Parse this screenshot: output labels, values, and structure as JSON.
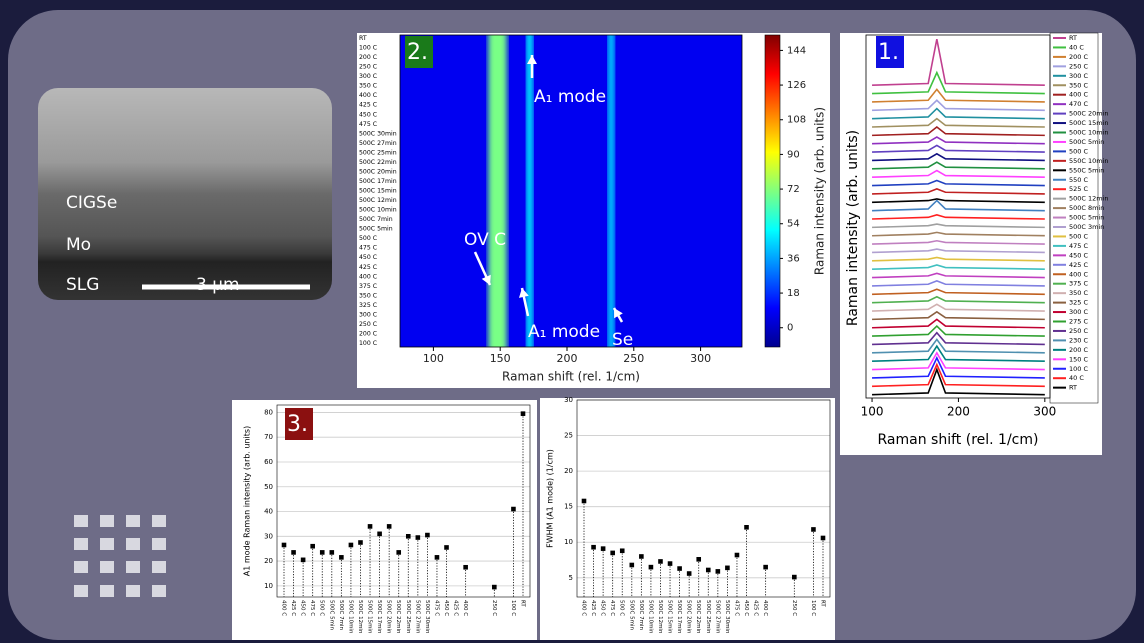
{
  "image": {
    "labels": [
      "CIGSe",
      "Mo",
      "SLG"
    ],
    "scale_bar": "3 μm"
  },
  "chart_data": [
    {
      "type": "heatmap",
      "panel_label": "2.",
      "xlabel": "Raman shift (rel. 1/cm)",
      "colorbar_label": "Raman intensity (arb. units)",
      "categories": [
        "RT",
        "100 C",
        "200 C",
        "250 C",
        "300 C",
        "350 C",
        "400 C",
        "425 C",
        "450 C",
        "475 C",
        "500C 30min",
        "500C 27min",
        "500C 25min",
        "500C 22min",
        "500C 20min",
        "500C 17min",
        "500C 15min",
        "500C 12min",
        "500C 10min",
        "500C 7min",
        "500C 5min",
        "500 C",
        "475 C",
        "450 C",
        "425 C",
        "400 C",
        "375 C",
        "350 C",
        "325 C",
        "300 C",
        "250 C",
        "200 C",
        "100 C"
      ],
      "xlim": [
        75,
        331
      ],
      "xticks": [
        100,
        150,
        200,
        250,
        300
      ],
      "clim": [
        -10,
        152
      ],
      "cticks": [
        0,
        18,
        36,
        54,
        72,
        90,
        108,
        126,
        144
      ],
      "background": 8,
      "peaks": [
        {
          "x": 148,
          "width": 14,
          "value": 70
        },
        {
          "x": 172,
          "width": 5,
          "value": 50
        },
        {
          "x": 233,
          "width": 5,
          "value": 45
        }
      ],
      "annotations": [
        "OV C",
        "A₁ mode",
        "A₁ mode",
        "Se"
      ]
    },
    {
      "type": "spectra",
      "panel_label": "1.",
      "xlabel": "Raman shift (rel. 1/cm)",
      "ylabel": "Raman intensity (arb. units)",
      "xlim": [
        93,
        306
      ],
      "xticks": [
        100,
        200,
        300
      ],
      "ylim": [
        -0.4,
        43
      ],
      "x": [
        100,
        165,
        175,
        185,
        300
      ],
      "series": [
        {
          "name": "RT",
          "color": "#c0408f",
          "values": [
            37,
            37.2,
            42.5,
            37.2,
            37
          ]
        },
        {
          "name": "40 C",
          "color": "#40c040",
          "values": [
            36,
            36.2,
            38.5,
            36.2,
            36
          ]
        },
        {
          "name": "200 C",
          "color": "#d08030",
          "values": [
            35,
            35.2,
            36.5,
            35.2,
            35
          ]
        },
        {
          "name": "250 C",
          "color": "#a0a0e0",
          "values": [
            34,
            34.2,
            35.2,
            34.2,
            34
          ]
        },
        {
          "name": "300 C",
          "color": "#2090a0",
          "values": [
            33,
            33.2,
            34.2,
            33.2,
            33
          ]
        },
        {
          "name": "350 C",
          "color": "#a09060",
          "values": [
            32,
            32.2,
            33,
            32.2,
            32
          ]
        },
        {
          "name": "400 C",
          "color": "#a02020",
          "values": [
            31,
            31.2,
            32,
            31.2,
            31
          ]
        },
        {
          "name": "470 C",
          "color": "#9030c0",
          "values": [
            30,
            30.2,
            30.8,
            30.2,
            30
          ]
        },
        {
          "name": "500C 20min",
          "color": "#6040c0",
          "values": [
            29,
            29.2,
            29.8,
            29.2,
            29
          ]
        },
        {
          "name": "500C 15min",
          "color": "#101080",
          "values": [
            28,
            28.2,
            28.8,
            28.2,
            28
          ]
        },
        {
          "name": "500C 10min",
          "color": "#209040",
          "values": [
            27,
            27.2,
            27.8,
            27.2,
            27
          ]
        },
        {
          "name": "500C 5min",
          "color": "#ff40ff",
          "values": [
            26,
            26.2,
            26.8,
            26.2,
            26
          ]
        },
        {
          "name": "500 C",
          "color": "#2040c0",
          "values": [
            25,
            25.2,
            25.6,
            25.2,
            25
          ]
        },
        {
          "name": "550C 10min",
          "color": "#c02020",
          "values": [
            24,
            24.2,
            24.6,
            24.2,
            24
          ]
        },
        {
          "name": "550C 5min",
          "color": "#000000",
          "values": [
            23,
            23.2,
            23.4,
            23.2,
            23
          ]
        },
        {
          "name": "550 C",
          "color": "#4080c0",
          "values": [
            22,
            22.2,
            23.2,
            22.2,
            22
          ]
        },
        {
          "name": "525 C",
          "color": "#ff2020",
          "values": [
            21,
            21.2,
            21.5,
            21.2,
            21
          ]
        },
        {
          "name": "500C 12min",
          "color": "#a0a0a0",
          "values": [
            20,
            20.2,
            20.4,
            20.2,
            20
          ]
        },
        {
          "name": "500C 8min",
          "color": "#a08060",
          "values": [
            19,
            19.2,
            19.4,
            19.2,
            19
          ]
        },
        {
          "name": "500C 5min",
          "color": "#c080c0",
          "values": [
            18,
            18.2,
            18.4,
            18.2,
            18
          ]
        },
        {
          "name": "500C 3min",
          "color": "#b0a0d0",
          "values": [
            17,
            17.2,
            17.4,
            17.2,
            17
          ]
        },
        {
          "name": "500 C",
          "color": "#e0c040",
          "values": [
            16,
            16.2,
            16.4,
            16.2,
            16
          ]
        },
        {
          "name": "475 C",
          "color": "#40c0c0",
          "values": [
            15,
            15.2,
            15.5,
            15.2,
            15
          ]
        },
        {
          "name": "450 C",
          "color": "#c040c0",
          "values": [
            14,
            14.2,
            14.5,
            14.2,
            14
          ]
        },
        {
          "name": "425 C",
          "color": "#8080e0",
          "values": [
            13,
            13.2,
            13.6,
            13.2,
            13
          ]
        },
        {
          "name": "400 C",
          "color": "#c06020",
          "values": [
            12,
            12.2,
            12.6,
            12.2,
            12
          ]
        },
        {
          "name": "375 C",
          "color": "#50b050",
          "values": [
            11,
            11.2,
            11.7,
            11.2,
            11
          ]
        },
        {
          "name": "350 C",
          "color": "#d0b0b0",
          "values": [
            10,
            10.2,
            10.8,
            10.2,
            10
          ]
        },
        {
          "name": "325 C",
          "color": "#8a6040",
          "values": [
            9,
            9.2,
            9.9,
            9.2,
            9
          ]
        },
        {
          "name": "300 C",
          "color": "#c00030",
          "values": [
            8,
            8.2,
            9,
            8.2,
            8
          ]
        },
        {
          "name": "275 C",
          "color": "#30a030",
          "values": [
            7,
            7.2,
            8.2,
            7.2,
            7
          ]
        },
        {
          "name": "250 C",
          "color": "#603090",
          "values": [
            6,
            6.2,
            7.4,
            6.2,
            6
          ]
        },
        {
          "name": "230 C",
          "color": "#5090b0",
          "values": [
            5,
            5.2,
            6.6,
            5.2,
            5
          ]
        },
        {
          "name": "200 C",
          "color": "#008080",
          "values": [
            4,
            4.2,
            5.8,
            4.2,
            4
          ]
        },
        {
          "name": "150 C",
          "color": "#ff40ff",
          "values": [
            3,
            3.2,
            5,
            3.2,
            3
          ]
        },
        {
          "name": "100 C",
          "color": "#2020ff",
          "values": [
            2,
            2.2,
            4.4,
            2.2,
            2
          ]
        },
        {
          "name": "40 C",
          "color": "#ff2020",
          "values": [
            1,
            1.2,
            3.6,
            1.2,
            1
          ]
        },
        {
          "name": "RT",
          "color": "#000000",
          "values": [
            0,
            0.2,
            3,
            0.2,
            0
          ]
        }
      ]
    },
    {
      "type": "stem",
      "panel_label": "3.",
      "ylabel": "A1 mode Raman intensity (arb. units)",
      "color": "#000000",
      "categories": [
        "400 C",
        "425 C",
        "450 C",
        "475 C",
        "500 C",
        "500C 5min",
        "500C 7min",
        "500C 10min",
        "500C 12min",
        "500C 15min",
        "500C 17min",
        "500C 20min",
        "500C 22min",
        "500C 25min",
        "500C 27min",
        "500C 30min",
        "475 C",
        "450 C",
        "425 C",
        "400 C",
        null,
        null,
        "250 C",
        null,
        "100 C",
        "RT"
      ],
      "values": [
        26.5,
        23.5,
        20.5,
        26,
        23.5,
        23.5,
        21.5,
        26.5,
        27.5,
        34,
        31,
        34,
        23.5,
        30,
        29.5,
        30.5,
        21.5,
        25.5,
        null,
        17.5,
        null,
        null,
        9.5,
        null,
        41,
        79.5
      ],
      "ylim": [
        5.5,
        83
      ],
      "yticks": [
        10,
        20,
        30,
        40,
        50,
        60,
        70,
        80
      ],
      "grid": true
    },
    {
      "type": "stem",
      "ylabel": "FWHM (A1 mode) (1/cm)",
      "color": "#000000",
      "categories": [
        "400 C",
        "425 C",
        "450 C",
        "475 C",
        "500 C",
        "500C 5min",
        "500C 7min",
        "500C 10min",
        "500C 12min",
        "500C 15min",
        "500C 17min",
        "500C 20min",
        "500C 22min",
        "500C 25min",
        "500C 27min",
        "500C 30min",
        "475 C",
        "450 C",
        "425 C",
        "400 C",
        null,
        null,
        "250 C",
        null,
        "100 C",
        "RT"
      ],
      "values": [
        15.8,
        9.3,
        9.1,
        8.5,
        8.8,
        6.8,
        8.0,
        6.5,
        7.3,
        7.0,
        6.3,
        5.6,
        7.6,
        6.1,
        5.9,
        6.4,
        8.2,
        12.1,
        null,
        6.5,
        null,
        null,
        5.1,
        null,
        11.8,
        10.6
      ],
      "ylim": [
        2.3,
        30
      ],
      "yticks": [
        5,
        10,
        15,
        20,
        25,
        30
      ],
      "grid": true
    }
  ]
}
